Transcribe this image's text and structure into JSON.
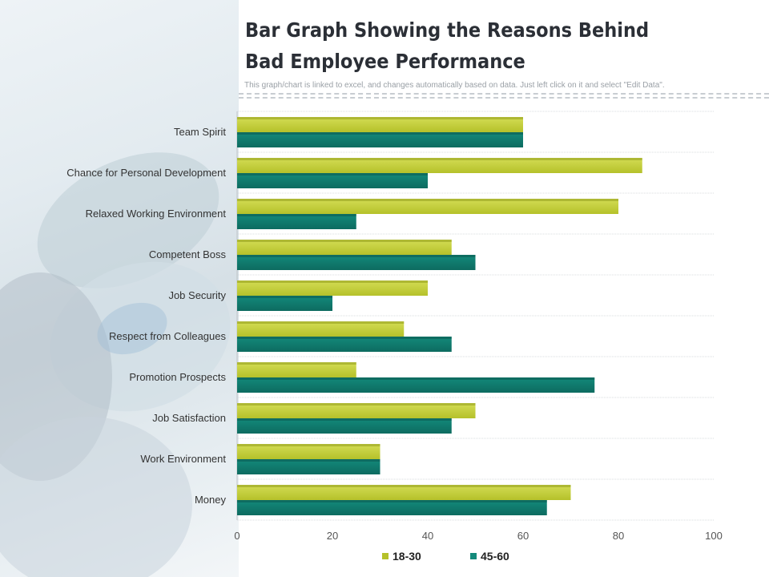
{
  "page": {
    "title": "Bar Graph Showing the Reasons Behind Bad Employee Performance",
    "subtitle": "This graph/chart is linked to excel, and changes automatically based on data. Just left click on it and select \"Edit Data\"."
  },
  "colors": {
    "series1": "#b5c12a",
    "series1_light": "#d4dd55",
    "series2": "#138a7b",
    "series2_dark": "#0d6b60",
    "grid": "#d9dcdf",
    "text": "#333333"
  },
  "chart_data": {
    "type": "bar",
    "orientation": "horizontal",
    "categories": [
      "Team Spirit",
      "Chance for Personal Development",
      "Relaxed Working Environment",
      "Competent Boss",
      "Job Security",
      "Respect from Colleagues",
      "Promotion Prospects",
      "Job Satisfaction",
      "Work Environment",
      "Money"
    ],
    "series": [
      {
        "name": "18-30",
        "values": [
          60,
          85,
          80,
          45,
          40,
          35,
          25,
          50,
          30,
          70
        ]
      },
      {
        "name": "45-60",
        "values": [
          60,
          40,
          25,
          50,
          20,
          45,
          75,
          45,
          30,
          65
        ]
      }
    ],
    "xlim": [
      0,
      100
    ],
    "xticks": [
      0,
      20,
      40,
      60,
      80,
      100
    ],
    "grid": "horizontal separators",
    "legend": "bottom"
  }
}
